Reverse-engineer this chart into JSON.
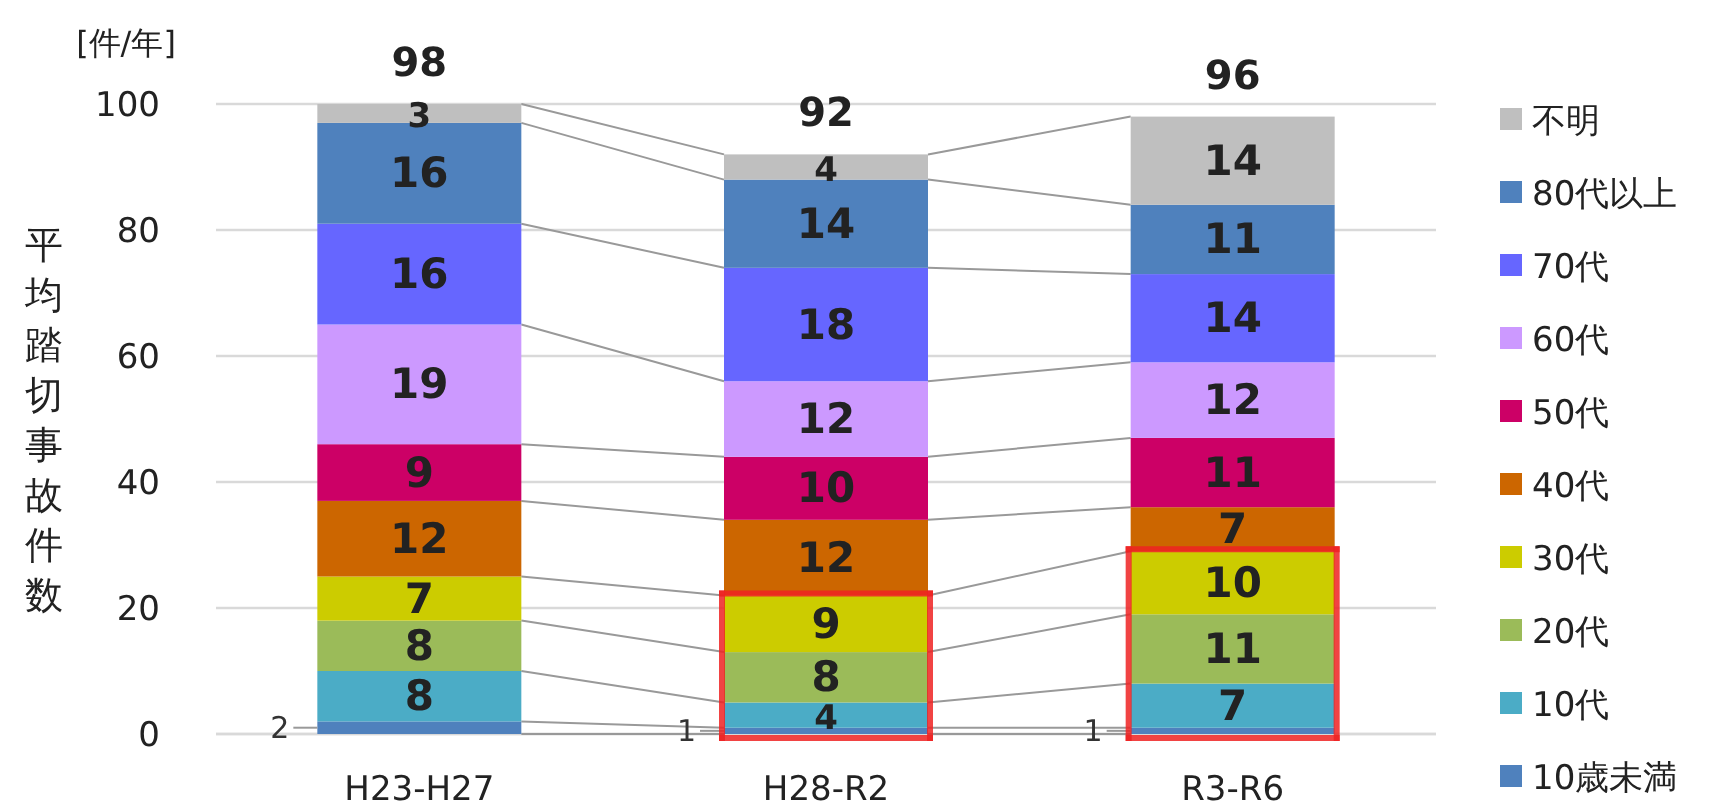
{
  "chart_data": {
    "type": "bar",
    "stacked": true,
    "ylabel": "平均踏切事故件数",
    "annotations": [
      "[件/年]"
    ],
    "categories": [
      "H23-H27",
      "H28-R2",
      "R3-R6"
    ],
    "series": [
      {
        "name": "10歳未満",
        "color": "#4f81bd",
        "values": [
          2,
          1,
          1
        ]
      },
      {
        "name": "10代",
        "color": "#4bacc6",
        "values": [
          8,
          4,
          7
        ]
      },
      {
        "name": "20代",
        "color": "#9bbb59",
        "values": [
          8,
          8,
          11
        ]
      },
      {
        "name": "30代",
        "color": "#cccc00",
        "values": [
          7,
          9,
          10
        ]
      },
      {
        "name": "40代",
        "color": "#cc6600",
        "values": [
          12,
          12,
          7
        ]
      },
      {
        "name": "50代",
        "color": "#cc0066",
        "values": [
          9,
          10,
          11
        ]
      },
      {
        "name": "60代",
        "color": "#cc99ff",
        "values": [
          19,
          12,
          12
        ]
      },
      {
        "name": "70代",
        "color": "#6666ff",
        "values": [
          16,
          18,
          14
        ]
      },
      {
        "name": "80代以上",
        "color": "#4f81bd",
        "values": [
          16,
          14,
          11
        ]
      },
      {
        "name": "不明",
        "color": "#bfbfbf",
        "values": [
          3,
          4,
          14
        ]
      }
    ],
    "totals": [
      "98",
      "92",
      "96"
    ],
    "data_labels": true,
    "ylim": [
      0,
      100
    ],
    "yticks": [
      0,
      20,
      40,
      60,
      80,
      100
    ],
    "grid": "y",
    "legend": "right"
  }
}
